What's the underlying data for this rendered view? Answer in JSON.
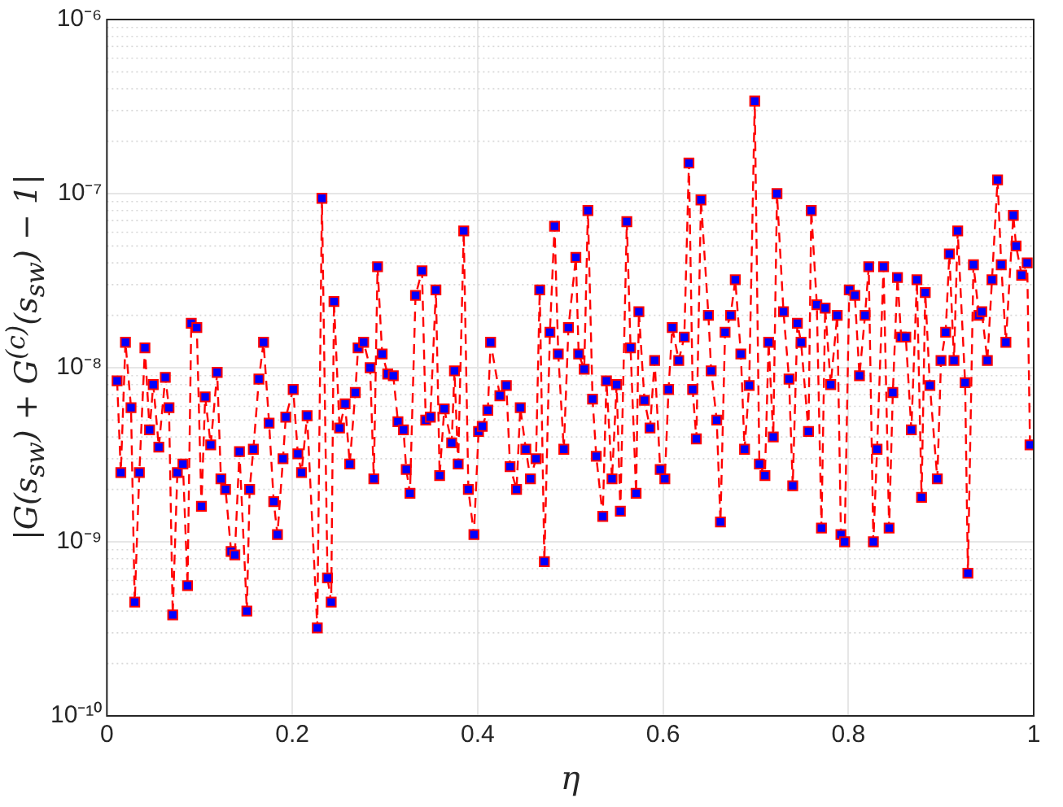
{
  "chart_data": {
    "type": "line",
    "xlabel": "η",
    "ylabel": "|G(s$_{sw}$) + G$^{(c)}$(s$_{sw}$) − 1|",
    "xlim": [
      0,
      1
    ],
    "xticks": [
      0,
      0.2,
      0.4,
      0.6,
      0.8,
      1
    ],
    "ylim": [
      1e-10,
      1e-06
    ],
    "yticks": [
      {
        "value": 1e-10,
        "label": "10⁻¹⁰"
      },
      {
        "value": 1e-09,
        "label": "10⁻⁹"
      },
      {
        "value": 1e-08,
        "label": "10⁻⁸"
      },
      {
        "value": 1e-07,
        "label": "10⁻⁷"
      },
      {
        "value": 1e-06,
        "label": "10⁻⁶"
      }
    ],
    "log": "y",
    "grid": true,
    "marker": "square",
    "line_style": "dashed",
    "legend": false,
    "series": [
      {
        "color": "#ff0000",
        "x": [
          0.011,
          0.015,
          0.02,
          0.026,
          0.03,
          0.035,
          0.041,
          0.046,
          0.05,
          0.056,
          0.063,
          0.067,
          0.071,
          0.076,
          0.082,
          0.087,
          0.091,
          0.097,
          0.102,
          0.106,
          0.112,
          0.119,
          0.123,
          0.128,
          0.134,
          0.138,
          0.143,
          0.151,
          0.154,
          0.158,
          0.164,
          0.169,
          0.175,
          0.18,
          0.184,
          0.19,
          0.193,
          0.201,
          0.206,
          0.21,
          0.216,
          0.227,
          0.232,
          0.238,
          0.242,
          0.245,
          0.251,
          0.257,
          0.262,
          0.268,
          0.271,
          0.277,
          0.284,
          0.288,
          0.292,
          0.297,
          0.303,
          0.309,
          0.314,
          0.32,
          0.323,
          0.327,
          0.333,
          0.34,
          0.344,
          0.349,
          0.355,
          0.359,
          0.364,
          0.372,
          0.375,
          0.379,
          0.385,
          0.39,
          0.396,
          0.401,
          0.405,
          0.411,
          0.414,
          0.424,
          0.431,
          0.435,
          0.442,
          0.446,
          0.452,
          0.457,
          0.463,
          0.467,
          0.472,
          0.478,
          0.483,
          0.487,
          0.493,
          0.498,
          0.506,
          0.509,
          0.515,
          0.519,
          0.524,
          0.528,
          0.535,
          0.539,
          0.545,
          0.55,
          0.554,
          0.561,
          0.565,
          0.571,
          0.574,
          0.58,
          0.586,
          0.591,
          0.597,
          0.602,
          0.606,
          0.61,
          0.617,
          0.623,
          0.628,
          0.632,
          0.636,
          0.641,
          0.649,
          0.652,
          0.658,
          0.662,
          0.667,
          0.673,
          0.678,
          0.684,
          0.688,
          0.693,
          0.699,
          0.704,
          0.71,
          0.714,
          0.719,
          0.723,
          0.73,
          0.736,
          0.74,
          0.745,
          0.749,
          0.757,
          0.76,
          0.766,
          0.771,
          0.775,
          0.781,
          0.788,
          0.792,
          0.796,
          0.801,
          0.807,
          0.812,
          0.818,
          0.822,
          0.827,
          0.831,
          0.838,
          0.844,
          0.848,
          0.853,
          0.857,
          0.862,
          0.868,
          0.874,
          0.879,
          0.883,
          0.888,
          0.896,
          0.9,
          0.905,
          0.909,
          0.914,
          0.918,
          0.926,
          0.929,
          0.935,
          0.941,
          0.944,
          0.95,
          0.955,
          0.961,
          0.965,
          0.97,
          0.978,
          0.981,
          0.987,
          0.993,
          0.996
        ],
        "values": [
          8.4e-09,
          2.5e-09,
          1.4e-08,
          5.9e-09,
          4.5e-10,
          2.5e-09,
          1.3e-08,
          4.4e-09,
          8e-09,
          3.5e-09,
          8.8e-09,
          5.9e-09,
          3.8e-10,
          2.5e-09,
          2.8e-09,
          5.6e-10,
          1.8e-08,
          1.7e-08,
          1.6e-09,
          6.8e-09,
          3.6e-09,
          9.4e-09,
          2.3e-09,
          2e-09,
          8.8e-10,
          8.4e-10,
          3.3e-09,
          4e-10,
          2e-09,
          3.4e-09,
          8.6e-09,
          1.4e-08,
          4.8e-09,
          1.7e-09,
          1.1e-09,
          3e-09,
          5.2e-09,
          7.5e-09,
          3.2e-09,
          2.5e-09,
          5.3e-09,
          3.2e-10,
          9.4e-08,
          6.2e-10,
          4.5e-10,
          2.4e-08,
          4.5e-09,
          6.2e-09,
          2.8e-09,
          7.2e-09,
          1.3e-08,
          1.4e-08,
          1e-08,
          2.3e-09,
          3.8e-08,
          1.2e-08,
          9.2e-09,
          9e-09,
          4.9e-09,
          4.4e-09,
          2.6e-09,
          1.9e-09,
          2.6e-08,
          3.6e-08,
          5e-09,
          5.2e-09,
          2.8e-08,
          2.4e-09,
          5.8e-09,
          3.7e-09,
          9.6e-09,
          2.8e-09,
          6.1e-08,
          2e-09,
          1.1e-09,
          4.3e-09,
          4.6e-09,
          5.7e-09,
          1.4e-08,
          6.9e-09,
          7.9e-09,
          2.7e-09,
          2e-09,
          5.9e-09,
          3.4e-09,
          2.3e-09,
          3e-09,
          2.8e-08,
          7.7e-10,
          1.6e-08,
          6.5e-08,
          1.2e-08,
          3.4e-09,
          1.7e-08,
          4.3e-08,
          1.2e-08,
          9.8e-09,
          8e-08,
          6.6e-09,
          3.1e-09,
          1.4e-09,
          8.4e-09,
          2.3e-09,
          8e-09,
          1.5e-09,
          6.9e-08,
          1.3e-08,
          1.9e-09,
          2.1e-08,
          6.5e-09,
          4.5e-09,
          1.1e-08,
          2.6e-09,
          2.3e-09,
          7.5e-09,
          1.7e-08,
          1.1e-08,
          1.5e-08,
          1.5e-07,
          7.5e-09,
          3.9e-09,
          9.2e-08,
          2e-08,
          9.6e-09,
          5e-09,
          1.3e-09,
          1.6e-08,
          2e-08,
          3.2e-08,
          1.2e-08,
          3.4e-09,
          7.9e-09,
          3.4e-07,
          2.8e-09,
          2.4e-09,
          1.4e-08,
          4e-09,
          1e-07,
          2.1e-08,
          8.6e-09,
          2.1e-09,
          1.8e-08,
          1.4e-08,
          4.3e-09,
          8e-08,
          2.3e-08,
          1.2e-09,
          2.2e-08,
          8e-09,
          2e-08,
          1.1e-09,
          1e-09,
          2.8e-08,
          2.6e-08,
          9e-09,
          2e-08,
          3.8e-08,
          1e-09,
          3.4e-09,
          3.8e-08,
          1.2e-09,
          7.2e-09,
          3.3e-08,
          1.5e-08,
          1.5e-08,
          4.4e-09,
          3.2e-08,
          1.8e-09,
          2.7e-08,
          7.9e-09,
          2.3e-09,
          1.1e-08,
          1.6e-08,
          4.5e-08,
          1.1e-08,
          6.1e-08,
          8.2e-09,
          6.6e-10,
          3.9e-08,
          2e-08,
          2.1e-08,
          1.1e-08,
          3.2e-08,
          1.2e-07,
          3.9e-08,
          1.4e-08,
          7.5e-08,
          5e-08,
          3.4e-08,
          4e-08,
          3.6e-09
        ]
      }
    ]
  }
}
